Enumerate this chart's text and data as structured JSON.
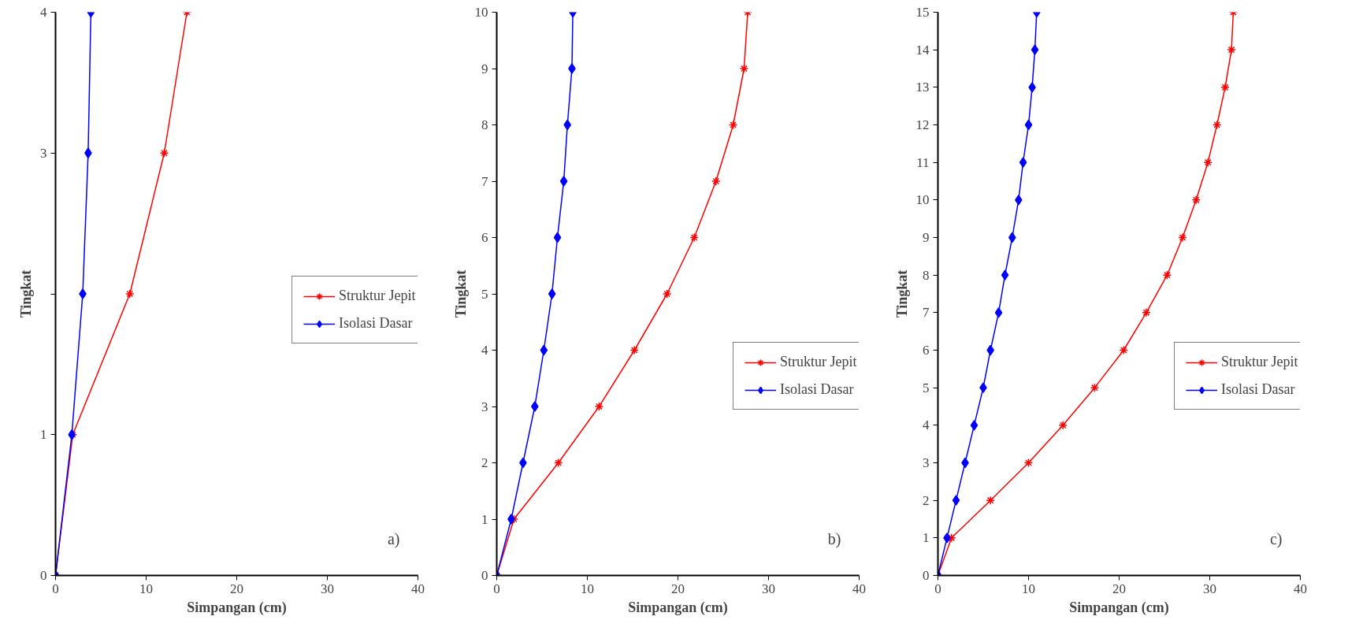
{
  "chart_data": [
    {
      "type": "line",
      "xlabel": "Simpangan (cm)",
      "ylabel": "Tingkat",
      "xlim": [
        0,
        40
      ],
      "xticks": [
        0,
        10,
        20,
        30,
        40
      ],
      "ylim": [
        0,
        4
      ],
      "yticks": [
        0,
        1,
        {
          "value": 2,
          "label": null
        },
        3,
        4
      ],
      "grid": false,
      "legend": "right",
      "annotations": [
        "a)"
      ],
      "series": [
        {
          "name": "Struktur Jepit",
          "color": "#ff0000",
          "marker": "cross",
          "x": [
            0,
            1.9,
            8.2,
            12.0,
            14.5
          ],
          "values": [
            0,
            1,
            2,
            3,
            4
          ]
        },
        {
          "name": "Isolasi Dasar",
          "color": "#0000ff",
          "marker": "diamond",
          "x": [
            0,
            1.8,
            3.0,
            3.6,
            3.9
          ],
          "values": [
            0,
            1,
            2,
            3,
            4
          ]
        }
      ]
    },
    {
      "type": "line",
      "xlabel": "Simpangan (cm)",
      "ylabel": "Tingkat",
      "xlim": [
        0,
        40
      ],
      "xticks": [
        0,
        10,
        20,
        30,
        40
      ],
      "ylim": [
        0,
        10
      ],
      "yticks": [
        0,
        1,
        2,
        3,
        4,
        5,
        6,
        7,
        8,
        9,
        10
      ],
      "grid": false,
      "legend": "bottom right",
      "annotations": [
        "b)"
      ],
      "series": [
        {
          "name": "Struktur Jepit",
          "color": "#ff0000",
          "marker": "cross",
          "x": [
            0,
            1.9,
            6.8,
            11.3,
            15.2,
            18.8,
            21.8,
            24.2,
            26.1,
            27.3,
            27.7
          ],
          "values": [
            0,
            1,
            2,
            3,
            4,
            5,
            6,
            7,
            8,
            9,
            10
          ]
        },
        {
          "name": "Isolasi Dasar",
          "color": "#0000ff",
          "marker": "diamond",
          "x": [
            0,
            1.6,
            2.9,
            4.2,
            5.2,
            6.1,
            6.7,
            7.4,
            7.8,
            8.3,
            8.4
          ],
          "values": [
            0,
            1,
            2,
            3,
            4,
            5,
            6,
            7,
            8,
            9,
            10
          ]
        }
      ]
    },
    {
      "type": "line",
      "xlabel": "Simpangan (cm)",
      "ylabel": "Tingkat",
      "xlim": [
        0,
        40
      ],
      "xticks": [
        0,
        10,
        20,
        30,
        40
      ],
      "ylim": [
        0,
        15
      ],
      "yticks": [
        0,
        1,
        2,
        3,
        4,
        5,
        6,
        7,
        8,
        9,
        10,
        11,
        12,
        13,
        14,
        15
      ],
      "grid": false,
      "legend": "bottom right",
      "annotations": [
        "c)"
      ],
      "series": [
        {
          "name": "Struktur Jepit",
          "color": "#ff0000",
          "marker": "cross",
          "x": [
            0,
            1.5,
            5.8,
            10.0,
            13.8,
            17.3,
            20.5,
            23.0,
            25.3,
            27.0,
            28.5,
            29.8,
            30.8,
            31.7,
            32.4,
            32.6
          ],
          "values": [
            0,
            1,
            2,
            3,
            4,
            5,
            6,
            7,
            8,
            9,
            10,
            11,
            12,
            13,
            14,
            15
          ]
        },
        {
          "name": "Isolasi Dasar",
          "color": "#0000ff",
          "marker": "diamond",
          "x": [
            0,
            1.0,
            2.0,
            3.0,
            4.0,
            5.0,
            5.8,
            6.7,
            7.4,
            8.2,
            8.9,
            9.4,
            10.0,
            10.4,
            10.7,
            10.9
          ],
          "values": [
            0,
            1,
            2,
            3,
            4,
            5,
            6,
            7,
            8,
            9,
            10,
            11,
            12,
            13,
            14,
            15
          ]
        }
      ]
    }
  ]
}
